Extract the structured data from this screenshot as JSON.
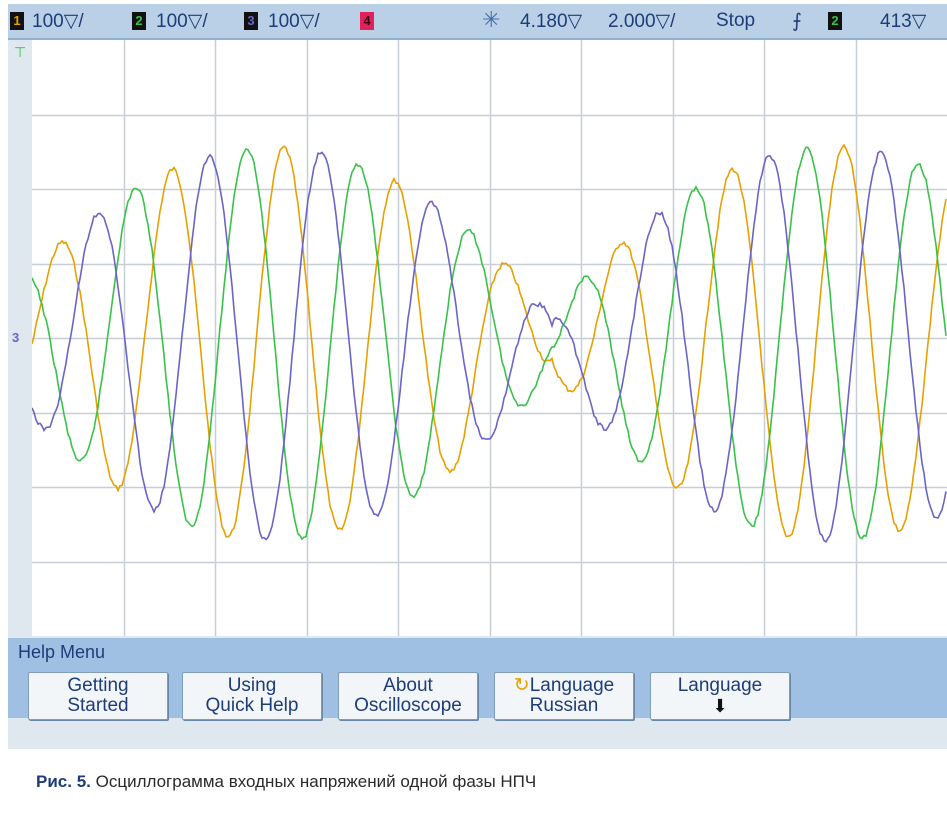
{
  "status_bar": {
    "channels": [
      {
        "number": "1",
        "scale": "100▽/",
        "color": "#e8a000"
      },
      {
        "number": "2",
        "scale": "100▽/",
        "color": "#39c24a"
      },
      {
        "number": "3",
        "scale": "100▽/",
        "color": "#6a64c8"
      },
      {
        "number": "4",
        "scale": "",
        "color": "#e0215c"
      }
    ],
    "time_delay": "4.180▽",
    "time_scale": "2.000▽/",
    "run_state": "Stop",
    "trigger_slope_symbol": "⨍",
    "trigger_source": "2",
    "trigger_level": "413▽"
  },
  "trace_colors": {
    "ch1": "#e8a000",
    "ch2": "#39c24a",
    "ch3": "#6a64c8"
  },
  "ground_marker": "3",
  "help_menu": {
    "title": "Help Menu",
    "softkeys": [
      {
        "line1": "Getting",
        "line2": "Started"
      },
      {
        "line1": "Using",
        "line2": "Quick Help"
      },
      {
        "line1": "About",
        "line2": "Oscilloscope"
      },
      {
        "line1": "Language",
        "line2": "Russian"
      },
      {
        "line1": "Language",
        "line2": ""
      }
    ]
  },
  "caption": {
    "label": "Рис. 5.",
    "text": "Осциллограмма входных напряжений одной фазы НПЧ"
  }
}
